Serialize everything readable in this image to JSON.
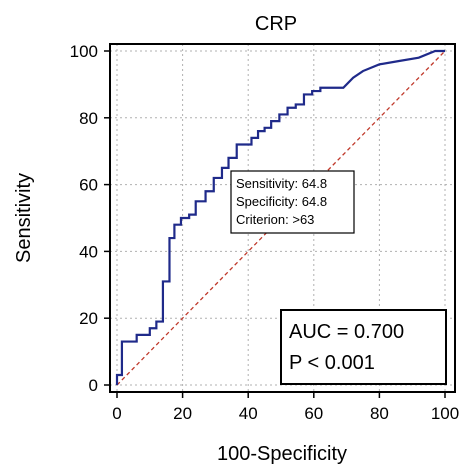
{
  "chart_data": {
    "type": "line",
    "title": "CRP",
    "xlabel": "100-Specificity",
    "ylabel": "Sensitivity",
    "xlim": [
      0,
      100
    ],
    "ylim": [
      0,
      100
    ],
    "xticks": [
      0,
      20,
      40,
      60,
      80,
      100
    ],
    "yticks": [
      0,
      20,
      40,
      60,
      80,
      100
    ],
    "grid": true,
    "colors": {
      "roc": "#1f2a8a",
      "reference": "#c0392b"
    },
    "series": [
      {
        "x": [
          0,
          0,
          1.5,
          1.5,
          6,
          6,
          10,
          10,
          12,
          12,
          14,
          14,
          16,
          16,
          17.5,
          17.5,
          19.5,
          19.5,
          22,
          22,
          24,
          24,
          27,
          27,
          29.5,
          29.5,
          32,
          32,
          34,
          34,
          36.5,
          36.5,
          41,
          41,
          43,
          43,
          45,
          45,
          47,
          47,
          49.5,
          49.5,
          52,
          52,
          54.5,
          54.5,
          57,
          57,
          59.5,
          59.5,
          62,
          62,
          69,
          72,
          75,
          80,
          86,
          92,
          97,
          100
        ],
        "y": [
          0,
          3,
          3,
          13,
          13,
          15,
          15,
          17,
          17,
          19,
          19,
          31,
          31,
          44,
          44,
          48,
          48,
          50,
          50,
          51,
          51,
          55,
          55,
          58,
          58,
          62,
          62,
          65,
          65,
          68,
          68,
          72,
          72,
          74,
          74,
          76,
          76,
          77,
          77,
          79,
          79,
          81,
          81,
          83,
          83,
          84,
          84,
          87,
          87,
          88,
          88,
          89,
          89,
          92,
          94,
          96,
          97,
          98,
          100,
          100
        ]
      },
      {
        "x": [
          0,
          100
        ],
        "y": [
          0,
          100
        ]
      }
    ],
    "annotation": {
      "lines": [
        "Sensitivity: 64.8",
        "Specificity: 64.8",
        "Criterion: >63"
      ],
      "point": [
        35.2,
        64.8
      ]
    },
    "stats_box": {
      "lines": [
        "AUC = 0.700",
        "P < 0.001"
      ]
    }
  }
}
